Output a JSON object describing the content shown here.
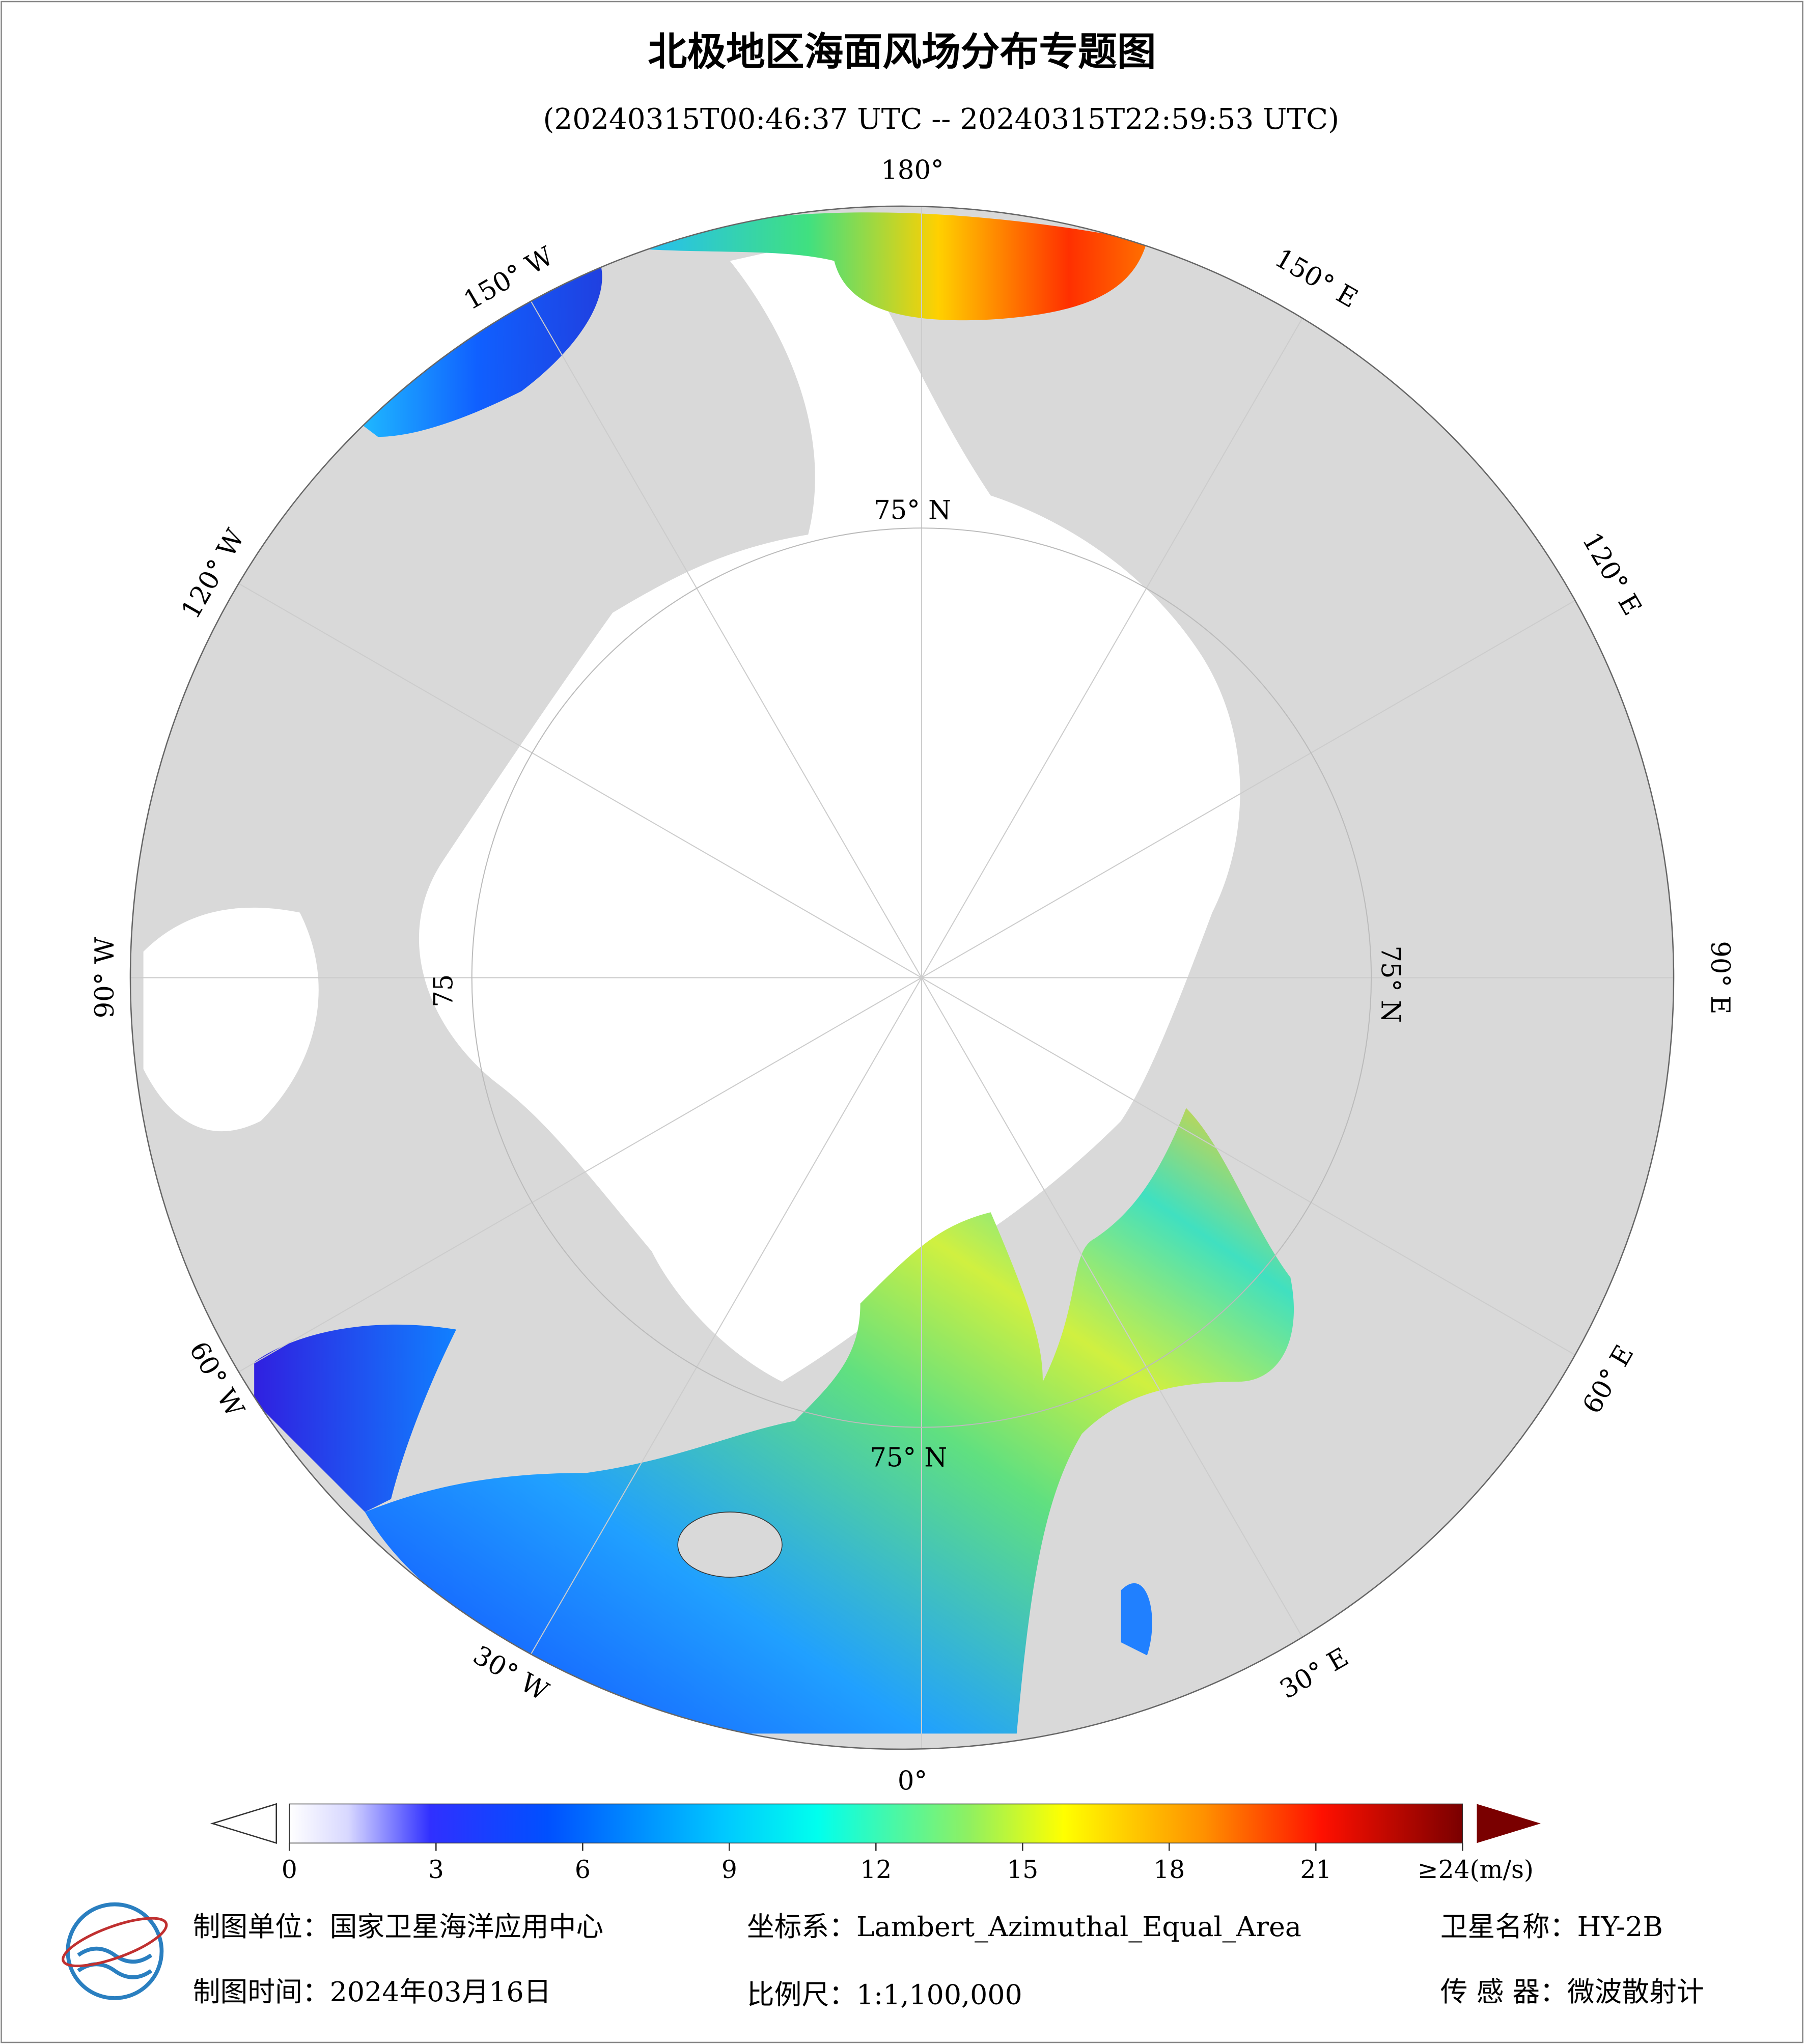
{
  "header": {
    "title": "北极地区海面风场分布专题图",
    "subtitle": "(20240315T00:46:37 UTC -- 20240315T22:59:53 UTC)"
  },
  "map": {
    "lon_labels": [
      "180°",
      "150° E",
      "120° E",
      "90° E",
      "60° E",
      "30° E",
      "0°",
      "30° W",
      "60° W",
      "90° W",
      "120° W",
      "150° W"
    ],
    "lat_labels": [
      "75° N",
      "75° N",
      "75° N",
      "75"
    ]
  },
  "colorbar": {
    "range": [
      0,
      24
    ],
    "ticks": [
      0,
      3,
      6,
      9,
      12,
      15,
      18,
      21,
      {
        "value": 24,
        "label": "≥24(m/s)"
      }
    ]
  },
  "footer": {
    "unit": "制图单位：国家卫星海洋应用中心",
    "projection": "坐标系：Lambert_Azimuthal_Equal_Area",
    "satellite": "卫星名称：HY-2B",
    "date": "制图时间：2024年03月16日",
    "scale": "比例尺：1:1,100,000",
    "sensor": "传 感 器：微波散射计"
  }
}
